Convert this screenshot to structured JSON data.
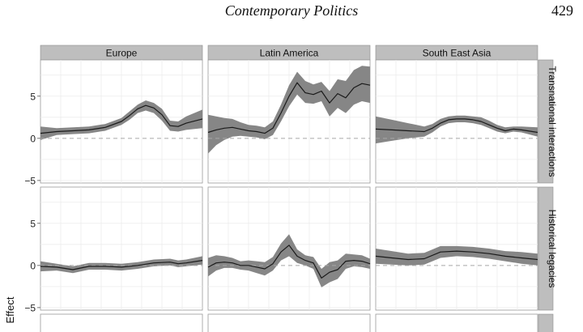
{
  "page_header": {
    "journal": "Contemporary Politics",
    "page_number": "429"
  },
  "chart_data": {
    "type": "line",
    "style": "faceted line chart with shaded confidence bands (grey ribbons) and dashed zero reference line",
    "ylabel": "Effect",
    "xlabel": "",
    "ylim": [
      -5.3,
      9.3
    ],
    "y_ticks": [
      -5,
      0,
      5
    ],
    "x_range": [
      0,
      1
    ],
    "grid": true,
    "zero_line": "dashed",
    "columns": [
      "Europe",
      "Latin America",
      "South East Asia"
    ],
    "rows": [
      "Transnational interactions",
      "Historical legacies"
    ],
    "panels": [
      {
        "row": "Transnational interactions",
        "column": "Europe",
        "x": [
          0,
          0.1,
          0.2,
          0.3,
          0.4,
          0.5,
          0.55,
          0.6,
          0.65,
          0.7,
          0.75,
          0.8,
          0.85,
          0.9,
          1.0
        ],
        "y": [
          0.6,
          0.8,
          0.9,
          1.0,
          1.3,
          2.0,
          2.7,
          3.5,
          3.9,
          3.6,
          2.8,
          1.5,
          1.4,
          1.8,
          2.3
        ],
        "lower": [
          -0.2,
          0.4,
          0.5,
          0.6,
          0.9,
          1.6,
          2.2,
          3.0,
          3.3,
          3.0,
          2.1,
          0.9,
          0.8,
          1.0,
          1.2
        ],
        "upper": [
          1.4,
          1.2,
          1.3,
          1.4,
          1.7,
          2.4,
          3.2,
          4.0,
          4.5,
          4.2,
          3.5,
          2.1,
          2.0,
          2.6,
          3.4
        ]
      },
      {
        "row": "Transnational interactions",
        "column": "Latin America",
        "x": [
          0,
          0.05,
          0.1,
          0.15,
          0.2,
          0.25,
          0.3,
          0.35,
          0.4,
          0.45,
          0.5,
          0.55,
          0.6,
          0.65,
          0.7,
          0.75,
          0.8,
          0.85,
          0.9,
          0.95,
          1.0
        ],
        "y": [
          0.7,
          1.0,
          1.2,
          1.3,
          1.1,
          0.9,
          0.8,
          0.6,
          1.2,
          3.0,
          5.0,
          6.6,
          5.4,
          5.2,
          5.6,
          4.2,
          5.3,
          4.8,
          6.0,
          6.5,
          6.3
        ],
        "lower": [
          -1.8,
          -0.8,
          -0.2,
          0.2,
          0.3,
          0.2,
          0.1,
          -0.1,
          0.4,
          2.0,
          3.8,
          5.2,
          4.2,
          4.1,
          4.4,
          2.6,
          3.6,
          3.0,
          4.0,
          4.4,
          4.2
        ],
        "upper": [
          2.8,
          2.6,
          2.4,
          2.3,
          1.9,
          1.6,
          1.5,
          1.3,
          2.0,
          4.0,
          6.3,
          7.9,
          6.8,
          6.4,
          6.7,
          5.6,
          7.0,
          6.8,
          8.1,
          8.6,
          8.5
        ]
      },
      {
        "row": "Transnational interactions",
        "column": "South East Asia",
        "x": [
          0,
          0.1,
          0.2,
          0.3,
          0.35,
          0.4,
          0.45,
          0.5,
          0.55,
          0.6,
          0.65,
          0.7,
          0.75,
          0.8,
          0.85,
          0.9,
          1.0
        ],
        "y": [
          1.1,
          1.0,
          0.9,
          0.8,
          1.2,
          1.8,
          2.2,
          2.3,
          2.3,
          2.2,
          2.0,
          1.6,
          1.2,
          0.9,
          1.1,
          1.0,
          0.7
        ],
        "lower": [
          -0.6,
          -0.3,
          0.0,
          0.2,
          0.7,
          1.4,
          1.8,
          1.9,
          1.9,
          1.8,
          1.6,
          1.2,
          0.8,
          0.6,
          0.8,
          0.7,
          0.2
        ],
        "upper": [
          2.6,
          2.2,
          1.8,
          1.4,
          1.7,
          2.3,
          2.6,
          2.7,
          2.7,
          2.6,
          2.5,
          2.1,
          1.6,
          1.3,
          1.4,
          1.4,
          1.3
        ]
      },
      {
        "row": "Historical legacies",
        "column": "Europe",
        "x": [
          0,
          0.1,
          0.2,
          0.3,
          0.4,
          0.5,
          0.6,
          0.7,
          0.8,
          0.85,
          0.9,
          1.0
        ],
        "y": [
          -0.1,
          -0.2,
          -0.5,
          -0.1,
          -0.1,
          -0.2,
          0.0,
          0.3,
          0.4,
          0.2,
          0.3,
          0.6
        ],
        "lower": [
          -0.7,
          -0.6,
          -0.9,
          -0.5,
          -0.5,
          -0.6,
          -0.4,
          -0.1,
          0.0,
          -0.2,
          -0.1,
          0.1
        ],
        "upper": [
          0.5,
          0.2,
          -0.1,
          0.3,
          0.3,
          0.2,
          0.4,
          0.7,
          0.8,
          0.6,
          0.7,
          1.1
        ]
      },
      {
        "row": "Historical legacies",
        "column": "Latin America",
        "x": [
          0,
          0.05,
          0.1,
          0.15,
          0.2,
          0.25,
          0.3,
          0.35,
          0.4,
          0.45,
          0.5,
          0.55,
          0.6,
          0.65,
          0.7,
          0.75,
          0.8,
          0.85,
          0.9,
          0.95,
          1.0
        ],
        "y": [
          -0.2,
          0.3,
          0.4,
          0.3,
          0.0,
          0.0,
          -0.2,
          -0.4,
          0.2,
          1.6,
          2.4,
          1.1,
          0.6,
          0.3,
          -1.5,
          -0.8,
          -0.5,
          0.5,
          0.6,
          0.5,
          0.2
        ],
        "lower": [
          -1.3,
          -0.6,
          -0.3,
          -0.3,
          -0.5,
          -0.6,
          -0.9,
          -1.2,
          -0.6,
          0.6,
          1.1,
          0.3,
          0.0,
          -0.4,
          -2.6,
          -2.0,
          -1.6,
          -0.4,
          -0.1,
          -0.2,
          -0.4
        ],
        "upper": [
          0.9,
          1.2,
          1.1,
          0.9,
          0.5,
          0.6,
          0.5,
          0.4,
          1.0,
          2.6,
          3.7,
          1.9,
          1.2,
          1.0,
          -0.4,
          0.4,
          0.6,
          1.4,
          1.3,
          1.2,
          0.8
        ]
      },
      {
        "row": "Historical legacies",
        "column": "South East Asia",
        "x": [
          0,
          0.1,
          0.2,
          0.3,
          0.4,
          0.5,
          0.6,
          0.7,
          0.8,
          0.9,
          1.0
        ],
        "y": [
          1.1,
          0.9,
          0.7,
          0.8,
          1.6,
          1.7,
          1.6,
          1.4,
          1.1,
          0.9,
          0.7
        ],
        "lower": [
          0.2,
          0.1,
          0.0,
          0.1,
          0.9,
          1.1,
          1.0,
          0.8,
          0.5,
          0.2,
          0.0
        ],
        "upper": [
          2.0,
          1.7,
          1.4,
          1.5,
          2.3,
          2.3,
          2.2,
          2.0,
          1.7,
          1.6,
          1.4
        ]
      }
    ],
    "colors": {
      "strip_bg": "#bebebe",
      "band": "#808080",
      "line": "#1a1a1a",
      "zero_line": "#a8a8a8",
      "grid": "#ececec"
    }
  }
}
